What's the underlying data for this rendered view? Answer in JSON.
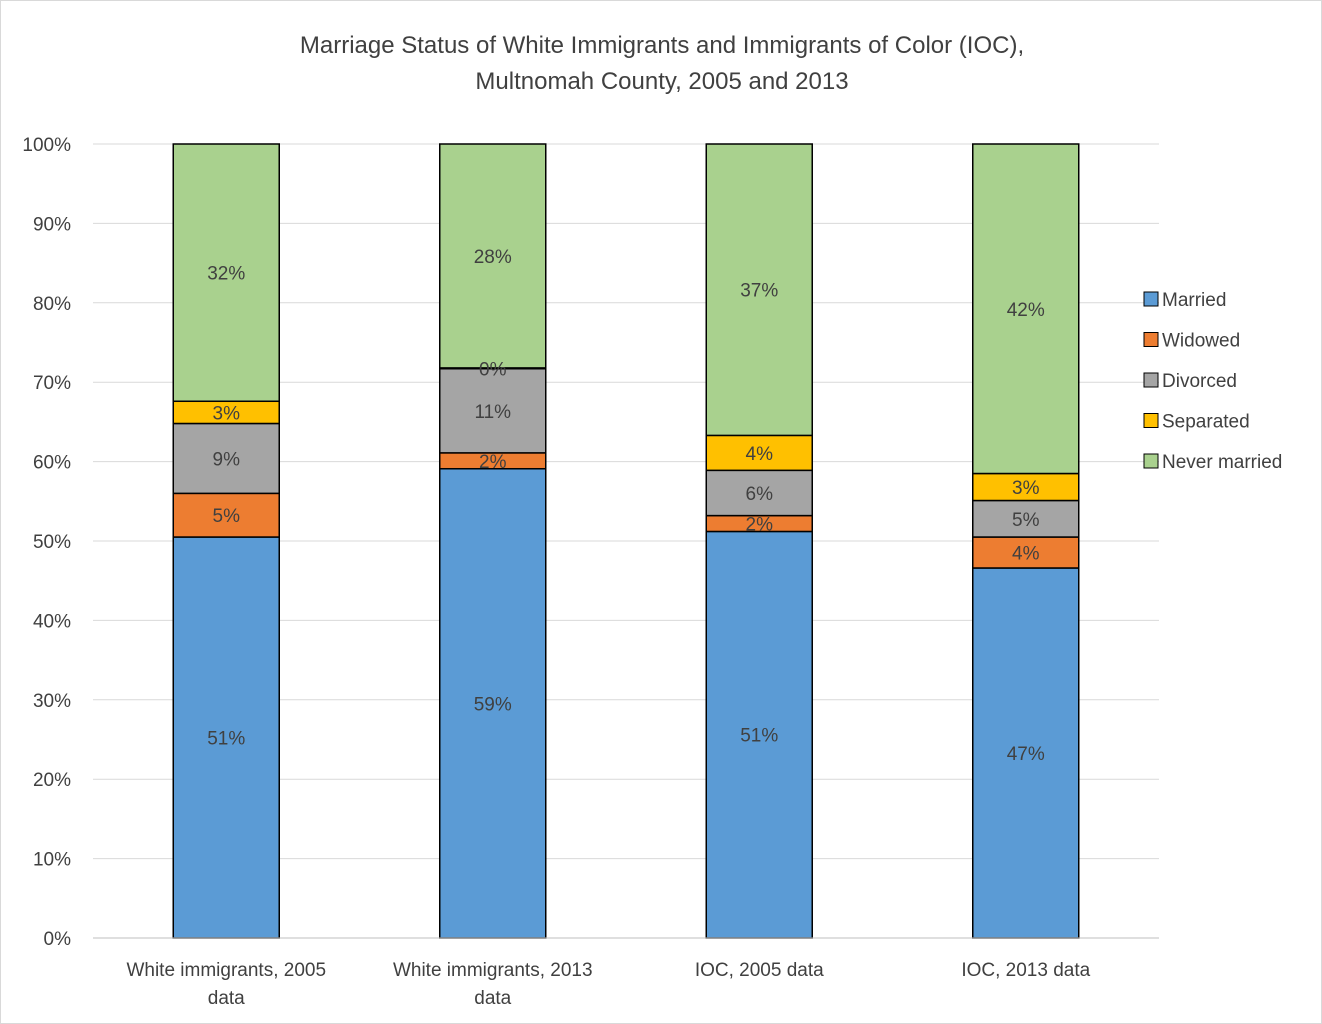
{
  "chart_data": {
    "type": "bar",
    "stacked": true,
    "title_lines": [
      "Marriage Status of White Immigrants and Immigrants of Color (IOC),",
      "Multnomah County, 2005 and 2013"
    ],
    "categories": [
      [
        "White immigrants, 2005",
        "data"
      ],
      [
        "White immigrants, 2013",
        "data"
      ],
      [
        "IOC, 2005 data"
      ],
      [
        "IOC, 2013 data"
      ]
    ],
    "series": [
      {
        "name": "Married",
        "color": "#5b9bd5",
        "values": [
          50.5,
          59.1,
          51.2,
          46.6
        ],
        "labels": [
          "51%",
          "59%",
          "51%",
          "47%"
        ]
      },
      {
        "name": "Widowed",
        "color": "#ed7d31",
        "values": [
          5.5,
          2.0,
          2.0,
          3.9
        ],
        "labels": [
          "5%",
          "2%",
          "2%",
          "4%"
        ]
      },
      {
        "name": "Divorced",
        "color": "#a5a5a5",
        "values": [
          8.8,
          10.6,
          5.7,
          4.6
        ],
        "labels": [
          "9%",
          "11%",
          "6%",
          "5%"
        ]
      },
      {
        "name": "Separated",
        "color": "#ffc000",
        "values": [
          2.8,
          0.1,
          4.4,
          3.4
        ],
        "labels": [
          "3%",
          "0%",
          "4%",
          "3%"
        ]
      },
      {
        "name": "Never married",
        "color": "#a9d18e",
        "values": [
          32.4,
          28.2,
          36.7,
          41.5
        ],
        "labels": [
          "32%",
          "28%",
          "37%",
          "42%"
        ]
      }
    ],
    "y_ticks": [
      "0%",
      "10%",
      "20%",
      "30%",
      "40%",
      "50%",
      "60%",
      "70%",
      "80%",
      "90%",
      "100%"
    ],
    "ylim": [
      0,
      100
    ],
    "grid": true,
    "legend_position": "right"
  }
}
